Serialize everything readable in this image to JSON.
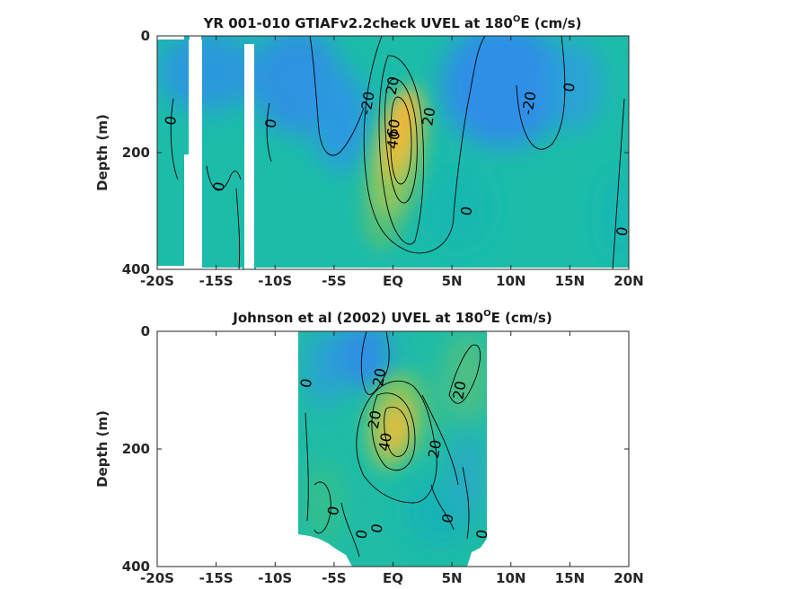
{
  "chart_data": [
    {
      "type": "heatmap",
      "title": "YR 001-010 GTIAFv2.2check UVEL at 180",
      "title_sup": "O",
      "title_suffix": "E (cm/s)",
      "ylabel": "Depth (m)",
      "xlim": [
        -20,
        20
      ],
      "ylim": [
        0,
        400
      ],
      "x_ticks": [
        -20,
        -15,
        -10,
        -5,
        0,
        5,
        10,
        15,
        20
      ],
      "x_tick_labels": [
        "-20S",
        "-15S",
        "-10S",
        "-5S",
        "EQ",
        "5N",
        "10N",
        "15N",
        "20N"
      ],
      "y_ticks": [
        0,
        200,
        400
      ],
      "y_tick_labels": [
        "0",
        "200",
        "400"
      ],
      "contour_labels": [
        {
          "text": "0",
          "x": -18.9,
          "y": 145
        },
        {
          "text": "0",
          "x": -14.8,
          "y": 258
        },
        {
          "text": "0",
          "x": -10.4,
          "y": 150
        },
        {
          "text": "-20",
          "x": -2.2,
          "y": 115
        },
        {
          "text": "20",
          "x": -0.1,
          "y": 85
        },
        {
          "text": "40",
          "x": 0.0,
          "y": 178
        },
        {
          "text": "60",
          "x": 0.0,
          "y": 158
        },
        {
          "text": "20",
          "x": 3.0,
          "y": 138
        },
        {
          "text": "0",
          "x": 6.2,
          "y": 300
        },
        {
          "text": "-20",
          "x": 11.5,
          "y": 115
        },
        {
          "text": "0",
          "x": 14.9,
          "y": 88
        },
        {
          "text": "0",
          "x": 19.4,
          "y": 335
        }
      ]
    },
    {
      "type": "heatmap",
      "title": "Johnson et al (2002) UVEL at 180",
      "title_sup": "O",
      "title_suffix": "E (cm/s)",
      "ylabel": "Depth (m)",
      "xlim": [
        -20,
        20
      ],
      "ylim": [
        0,
        400
      ],
      "x_ticks": [
        -20,
        -15,
        -10,
        -5,
        0,
        5,
        10,
        15,
        20
      ],
      "x_tick_labels": [
        "-20S",
        "-15S",
        "-10S",
        "-5S",
        "EQ",
        "5N",
        "10N",
        "15N",
        "20N"
      ],
      "y_ticks": [
        0,
        200,
        400
      ],
      "y_tick_labels": [
        "0",
        "200",
        "400"
      ],
      "data_extent_lon": [
        -8,
        8
      ],
      "contour_labels": [
        {
          "text": "0",
          "x": -7.4,
          "y": 88
        },
        {
          "text": "20",
          "x": -1.2,
          "y": 78
        },
        {
          "text": "20",
          "x": -1.6,
          "y": 150
        },
        {
          "text": "40",
          "x": -0.7,
          "y": 188
        },
        {
          "text": "20",
          "x": 3.5,
          "y": 200
        },
        {
          "text": "20",
          "x": 5.6,
          "y": 100
        },
        {
          "text": "0",
          "x": -5.1,
          "y": 305
        },
        {
          "text": "0",
          "x": -2.7,
          "y": 345
        },
        {
          "text": "0",
          "x": -1.4,
          "y": 335
        },
        {
          "text": "0",
          "x": 4.6,
          "y": 318
        },
        {
          "text": "0",
          "x": 7.5,
          "y": 345
        }
      ]
    }
  ],
  "colors": {
    "background_field": "#1fbfa8",
    "westward_core": "#2d8fe6",
    "eastward_core": "#f5c233",
    "contour": "#000000"
  }
}
